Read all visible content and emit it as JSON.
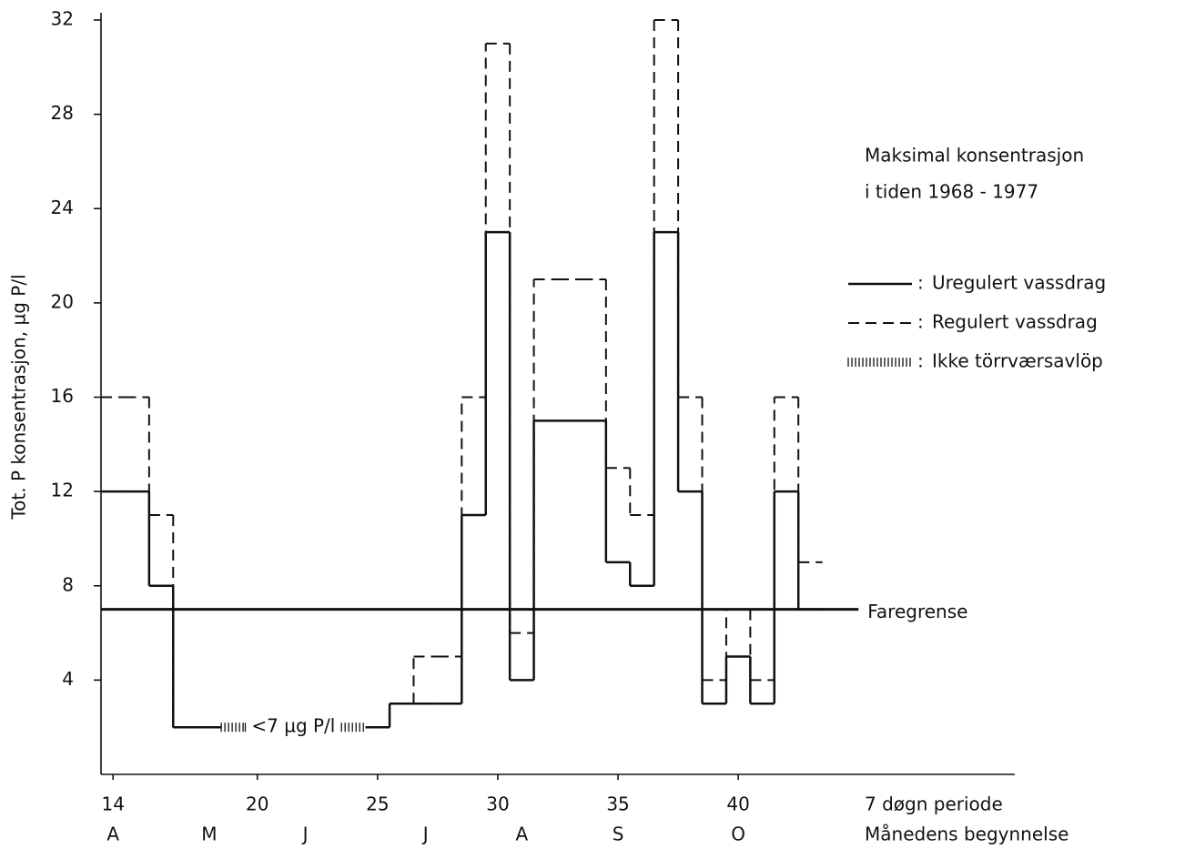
{
  "chart_data": {
    "type": "step",
    "y_label": "Tot. P konsentrasjon, µg P/l",
    "x_label": "7 døgn periode",
    "month_row_label": "Månedens begynnelse",
    "annotation": [
      "Maksimal konsentrasjon",
      "i tiden 1968 - 1977"
    ],
    "x": [
      14,
      15,
      16,
      17,
      18,
      19,
      20,
      21,
      22,
      23,
      24,
      25,
      26,
      27,
      28,
      29,
      30,
      31,
      32,
      33,
      34,
      35,
      36,
      37,
      38,
      39,
      40,
      41,
      42,
      43
    ],
    "series": [
      {
        "name": "Uregulert vassdrag",
        "style": "solid",
        "color": "#111111",
        "values": [
          12,
          12,
          8,
          2,
          2,
          null,
          null,
          null,
          null,
          null,
          null,
          2,
          3,
          3,
          3,
          11,
          23,
          4,
          15,
          15,
          15,
          9,
          8,
          23,
          12,
          3,
          5,
          3,
          12,
          7
        ]
      },
      {
        "name": "Regulert vassdrag",
        "style": "dashed",
        "color": "#111111",
        "values": [
          16,
          16,
          11,
          2,
          2,
          null,
          null,
          null,
          null,
          null,
          null,
          2,
          3,
          5,
          5,
          16,
          31,
          6,
          21,
          21,
          21,
          13,
          11,
          32,
          16,
          4,
          7,
          4,
          16,
          9
        ]
      },
      {
        "name": "Ikke törrværsavlöp",
        "style": "hatched",
        "color": "#111111",
        "values": [
          null,
          null,
          null,
          null,
          null,
          2,
          2,
          2,
          2,
          2,
          2,
          null,
          null,
          null,
          null,
          null,
          null,
          null,
          null,
          null,
          null,
          null,
          null,
          null,
          null,
          null,
          null,
          null,
          null,
          null
        ]
      }
    ],
    "hatch_label": "<7 µg P/l",
    "threshold": {
      "label": "Faregrense",
      "value": 7,
      "end": 45
    },
    "months": {
      "labels": [
        "A",
        "M",
        "J",
        "J",
        "A",
        "S",
        "O"
      ],
      "x": [
        14,
        18,
        22,
        27,
        31,
        35,
        40
      ]
    },
    "xlim": [
      13.5,
      51.5
    ],
    "xticks": [
      14,
      20,
      25,
      30,
      35,
      40
    ],
    "ylim": [
      0,
      32
    ],
    "yticks": [
      4,
      8,
      12,
      16,
      20,
      24,
      28,
      32
    ],
    "grid": false
  }
}
